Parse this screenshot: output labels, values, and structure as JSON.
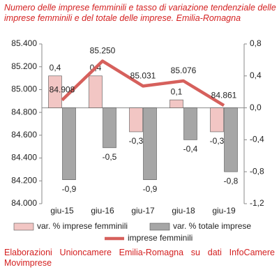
{
  "chart_data": {
    "type": "combo",
    "title": "Numero delle imprese femminili e tasso di variazione tendenziale delle imprese femminili e del totale delle imprese. Emilia-Romagna",
    "source": "Elaborazioni Unioncamere Emilia-Romagna su dati InfoCamere Movimprese",
    "categories": [
      "giu-15",
      "giu-16",
      "giu-17",
      "giu-18",
      "giu-19"
    ],
    "ylim": [
      84000,
      85400
    ],
    "yticks": [
      {
        "value": 84000,
        "label": "84.000"
      },
      {
        "value": 84200,
        "label": "84.200"
      },
      {
        "value": 84400,
        "label": "84.400"
      },
      {
        "value": 84600,
        "label": "84.600"
      },
      {
        "value": 84800,
        "label": "84.800"
      },
      {
        "value": 85000,
        "label": "85.000"
      },
      {
        "value": 85200,
        "label": "85.200"
      },
      {
        "value": 85400,
        "label": "85.400"
      }
    ],
    "y2lim": [
      -1.2,
      0.8
    ],
    "y2ticks": [
      {
        "value": -1.2,
        "label": "-1,2"
      },
      {
        "value": -0.8,
        "label": "-0,8"
      },
      {
        "value": -0.4,
        "label": "-0,4"
      },
      {
        "value": 0,
        "label": "0,0"
      },
      {
        "value": 0.4,
        "label": "0,4"
      },
      {
        "value": 0.8,
        "label": "0,8"
      }
    ],
    "series": [
      {
        "name": "var. % imprese femminili",
        "type": "bar",
        "axis": "y2",
        "color": "#f2c6c4",
        "values": [
          0.4,
          0.4,
          -0.3,
          0.1,
          -0.3
        ],
        "value_labels": [
          "0,4",
          "0,4",
          "-0,3",
          "0,1",
          "-0,3"
        ]
      },
      {
        "name": "var. % totale imprese",
        "type": "bar",
        "axis": "y2",
        "color": "#a6a6a6",
        "values": [
          -0.9,
          -0.5,
          -0.9,
          -0.4,
          -0.8
        ],
        "value_labels": [
          "-0,9",
          "-0,5",
          "-0,9",
          "-0,4",
          "-0,8"
        ]
      },
      {
        "name": "imprese femminili",
        "type": "line",
        "axis": "y",
        "color": "#d6605c",
        "values": [
          84908,
          85250,
          85031,
          85076,
          84861
        ],
        "value_labels": [
          "84.908",
          "85.250",
          "85.031",
          "85.076",
          "84.861"
        ]
      }
    ]
  }
}
